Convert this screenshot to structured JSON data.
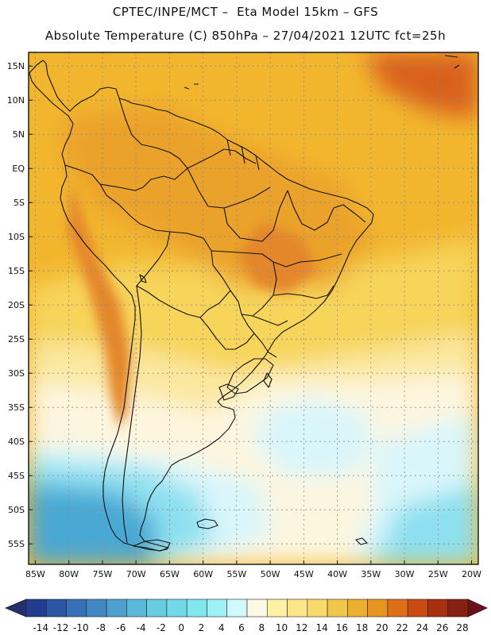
{
  "header": {
    "line1": "CPTEC/INPE/MCT –  Eta Model 15km – GFS",
    "line2": "Absolute Temperature (C) 850hPa – 27/04/2021 12UTC fct=25h"
  },
  "map": {
    "lon_range": [
      -86,
      -19
    ],
    "lat_range": [
      -58,
      17
    ],
    "lat_labels": [
      "15N",
      "10N",
      "5N",
      "EQ",
      "5S",
      "10S",
      "15S",
      "20S",
      "25S",
      "30S",
      "35S",
      "40S",
      "45S",
      "50S",
      "55S"
    ],
    "lat_values": [
      15,
      10,
      5,
      0,
      -5,
      -10,
      -15,
      -20,
      -25,
      -30,
      -35,
      -40,
      -45,
      -50,
      -55
    ],
    "lon_labels": [
      "85W",
      "80W",
      "75W",
      "70W",
      "65W",
      "60W",
      "55W",
      "50W",
      "45W",
      "40W",
      "35W",
      "30W",
      "25W",
      "20W"
    ],
    "lon_values": [
      -85,
      -80,
      -75,
      -70,
      -65,
      -60,
      -55,
      -50,
      -45,
      -40,
      -35,
      -30,
      -25,
      -20
    ],
    "field_colors": {
      "cold_deep": "#2d5ea8",
      "cold": "#4aa8d4",
      "cool": "#8ee0f0",
      "pale": "#d9f6fb",
      "cream": "#fdf6df",
      "light_yellow": "#fbe8a0",
      "yellow": "#f7d45a",
      "gold": "#f2b62e",
      "orange": "#eba22a",
      "dark_orange": "#e4862a",
      "red_orange": "#d9601e"
    }
  },
  "colorbar": {
    "labels": [
      "-14",
      "-12",
      "-10",
      "-8",
      "-6",
      "-4",
      "-2",
      "0",
      "2",
      "4",
      "6",
      "8",
      "10",
      "12",
      "14",
      "16",
      "18",
      "20",
      "22",
      "24",
      "26",
      "28"
    ],
    "colors": [
      "#233c8e",
      "#2c55a4",
      "#3770b6",
      "#4288c4",
      "#4ea0cf",
      "#5ab8d9",
      "#66ccdf",
      "#70dbe6",
      "#7fe8ee",
      "#9cf1f6",
      "#d2f8fb",
      "#fdf8e4",
      "#fdf1a6",
      "#fbe68a",
      "#f8d96b",
      "#f2c64a",
      "#ecb030",
      "#e89420",
      "#df6e1a",
      "#ca4a14",
      "#a8300e",
      "#852012"
    ],
    "low_arrow_color": "#23306e",
    "high_arrow_color": "#6e0f1a"
  }
}
